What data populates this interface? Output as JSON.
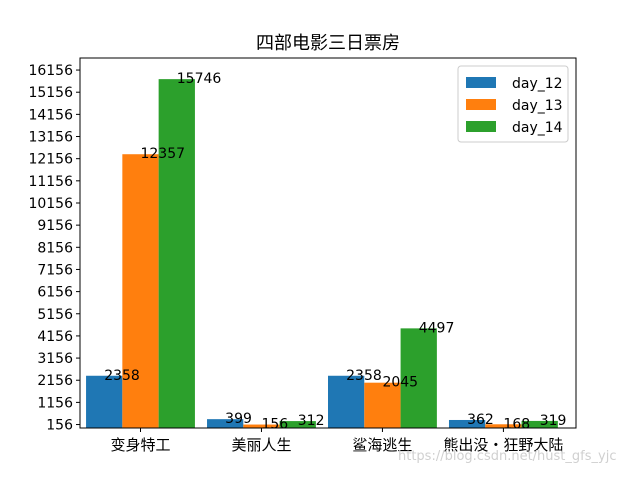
{
  "watermark": "https://blog.csdn.net/hust_gfs_yjc",
  "chart_data": {
    "type": "bar",
    "title": "四部电影三日票房",
    "categories": [
      "变身特工",
      "美丽人生",
      "鲨海逃生",
      "熊出没・狂野大陆"
    ],
    "series": [
      {
        "name": "day_12",
        "values": [
          2358,
          399,
          2358,
          362
        ],
        "color": "#1f77b4"
      },
      {
        "name": "day_13",
        "values": [
          12357,
          156,
          2045,
          168
        ],
        "color": "#ff7f0e"
      },
      {
        "name": "day_14",
        "values": [
          15746,
          312,
          4497,
          319
        ],
        "color": "#2ca02c"
      }
    ],
    "yticks": [
      156,
      1156,
      2156,
      3156,
      4156,
      5156,
      6156,
      7156,
      8156,
      9156,
      10156,
      11156,
      12156,
      13156,
      14156,
      15156,
      16156
    ],
    "ylim": [
      0,
      16700
    ],
    "xlabel": "",
    "ylabel": "",
    "legend": "top-right",
    "grid": false
  }
}
